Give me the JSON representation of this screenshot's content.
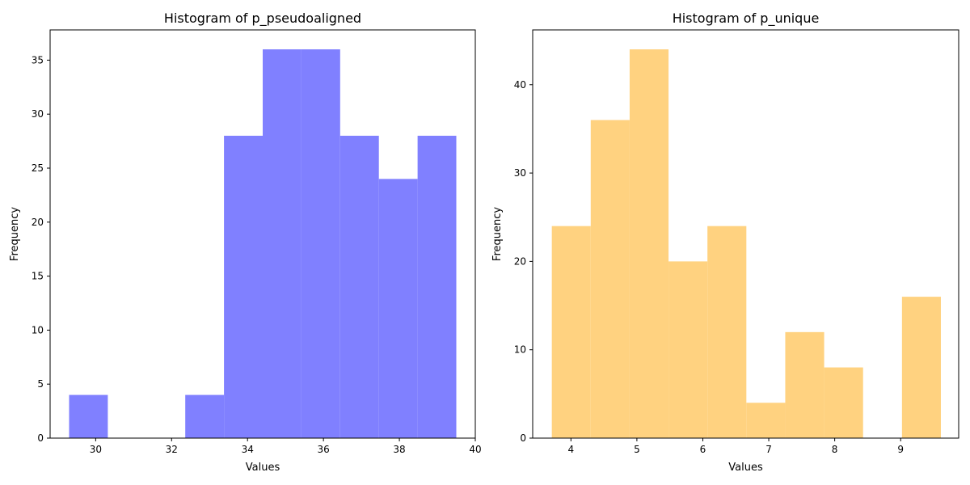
{
  "chart_data": [
    {
      "type": "bar",
      "title": "Histogram of p_pseudoaligned",
      "xlabel": "Values",
      "ylabel": "Frequency",
      "color": "#8080ff",
      "xlim": [
        28.8,
        40
      ],
      "ylim": [
        0,
        37.8
      ],
      "xticks": [
        30,
        32,
        34,
        36,
        38,
        40
      ],
      "yticks": [
        0,
        5,
        10,
        15,
        20,
        25,
        30,
        35
      ],
      "bins": [
        {
          "start": 29.3,
          "end": 30.32,
          "count": 4
        },
        {
          "start": 30.32,
          "end": 31.34,
          "count": 0
        },
        {
          "start": 31.34,
          "end": 32.36,
          "count": 0
        },
        {
          "start": 32.36,
          "end": 33.38,
          "count": 4
        },
        {
          "start": 33.38,
          "end": 34.4,
          "count": 28
        },
        {
          "start": 34.4,
          "end": 35.42,
          "count": 36
        },
        {
          "start": 35.42,
          "end": 36.44,
          "count": 36
        },
        {
          "start": 36.44,
          "end": 37.46,
          "count": 28
        },
        {
          "start": 37.46,
          "end": 38.48,
          "count": 24
        },
        {
          "start": 38.48,
          "end": 39.5,
          "count": 28
        }
      ]
    },
    {
      "type": "bar",
      "title": "Histogram of p_unique",
      "xlabel": "Values",
      "ylabel": "Frequency",
      "color": "#ffd280",
      "xlim": [
        3.42,
        9.88
      ],
      "ylim": [
        0,
        46.2
      ],
      "xticks": [
        4,
        5,
        6,
        7,
        8,
        9
      ],
      "yticks": [
        0,
        10,
        20,
        30,
        40
      ],
      "bins": [
        {
          "start": 3.71,
          "end": 4.3,
          "count": 24
        },
        {
          "start": 4.3,
          "end": 4.89,
          "count": 36
        },
        {
          "start": 4.89,
          "end": 5.48,
          "count": 44
        },
        {
          "start": 5.48,
          "end": 6.07,
          "count": 20
        },
        {
          "start": 6.07,
          "end": 6.66,
          "count": 24
        },
        {
          "start": 6.66,
          "end": 7.25,
          "count": 4
        },
        {
          "start": 7.25,
          "end": 7.84,
          "count": 12
        },
        {
          "start": 7.84,
          "end": 8.43,
          "count": 8
        },
        {
          "start": 8.43,
          "end": 9.02,
          "count": 0
        },
        {
          "start": 9.02,
          "end": 9.61,
          "count": 16
        }
      ]
    }
  ]
}
